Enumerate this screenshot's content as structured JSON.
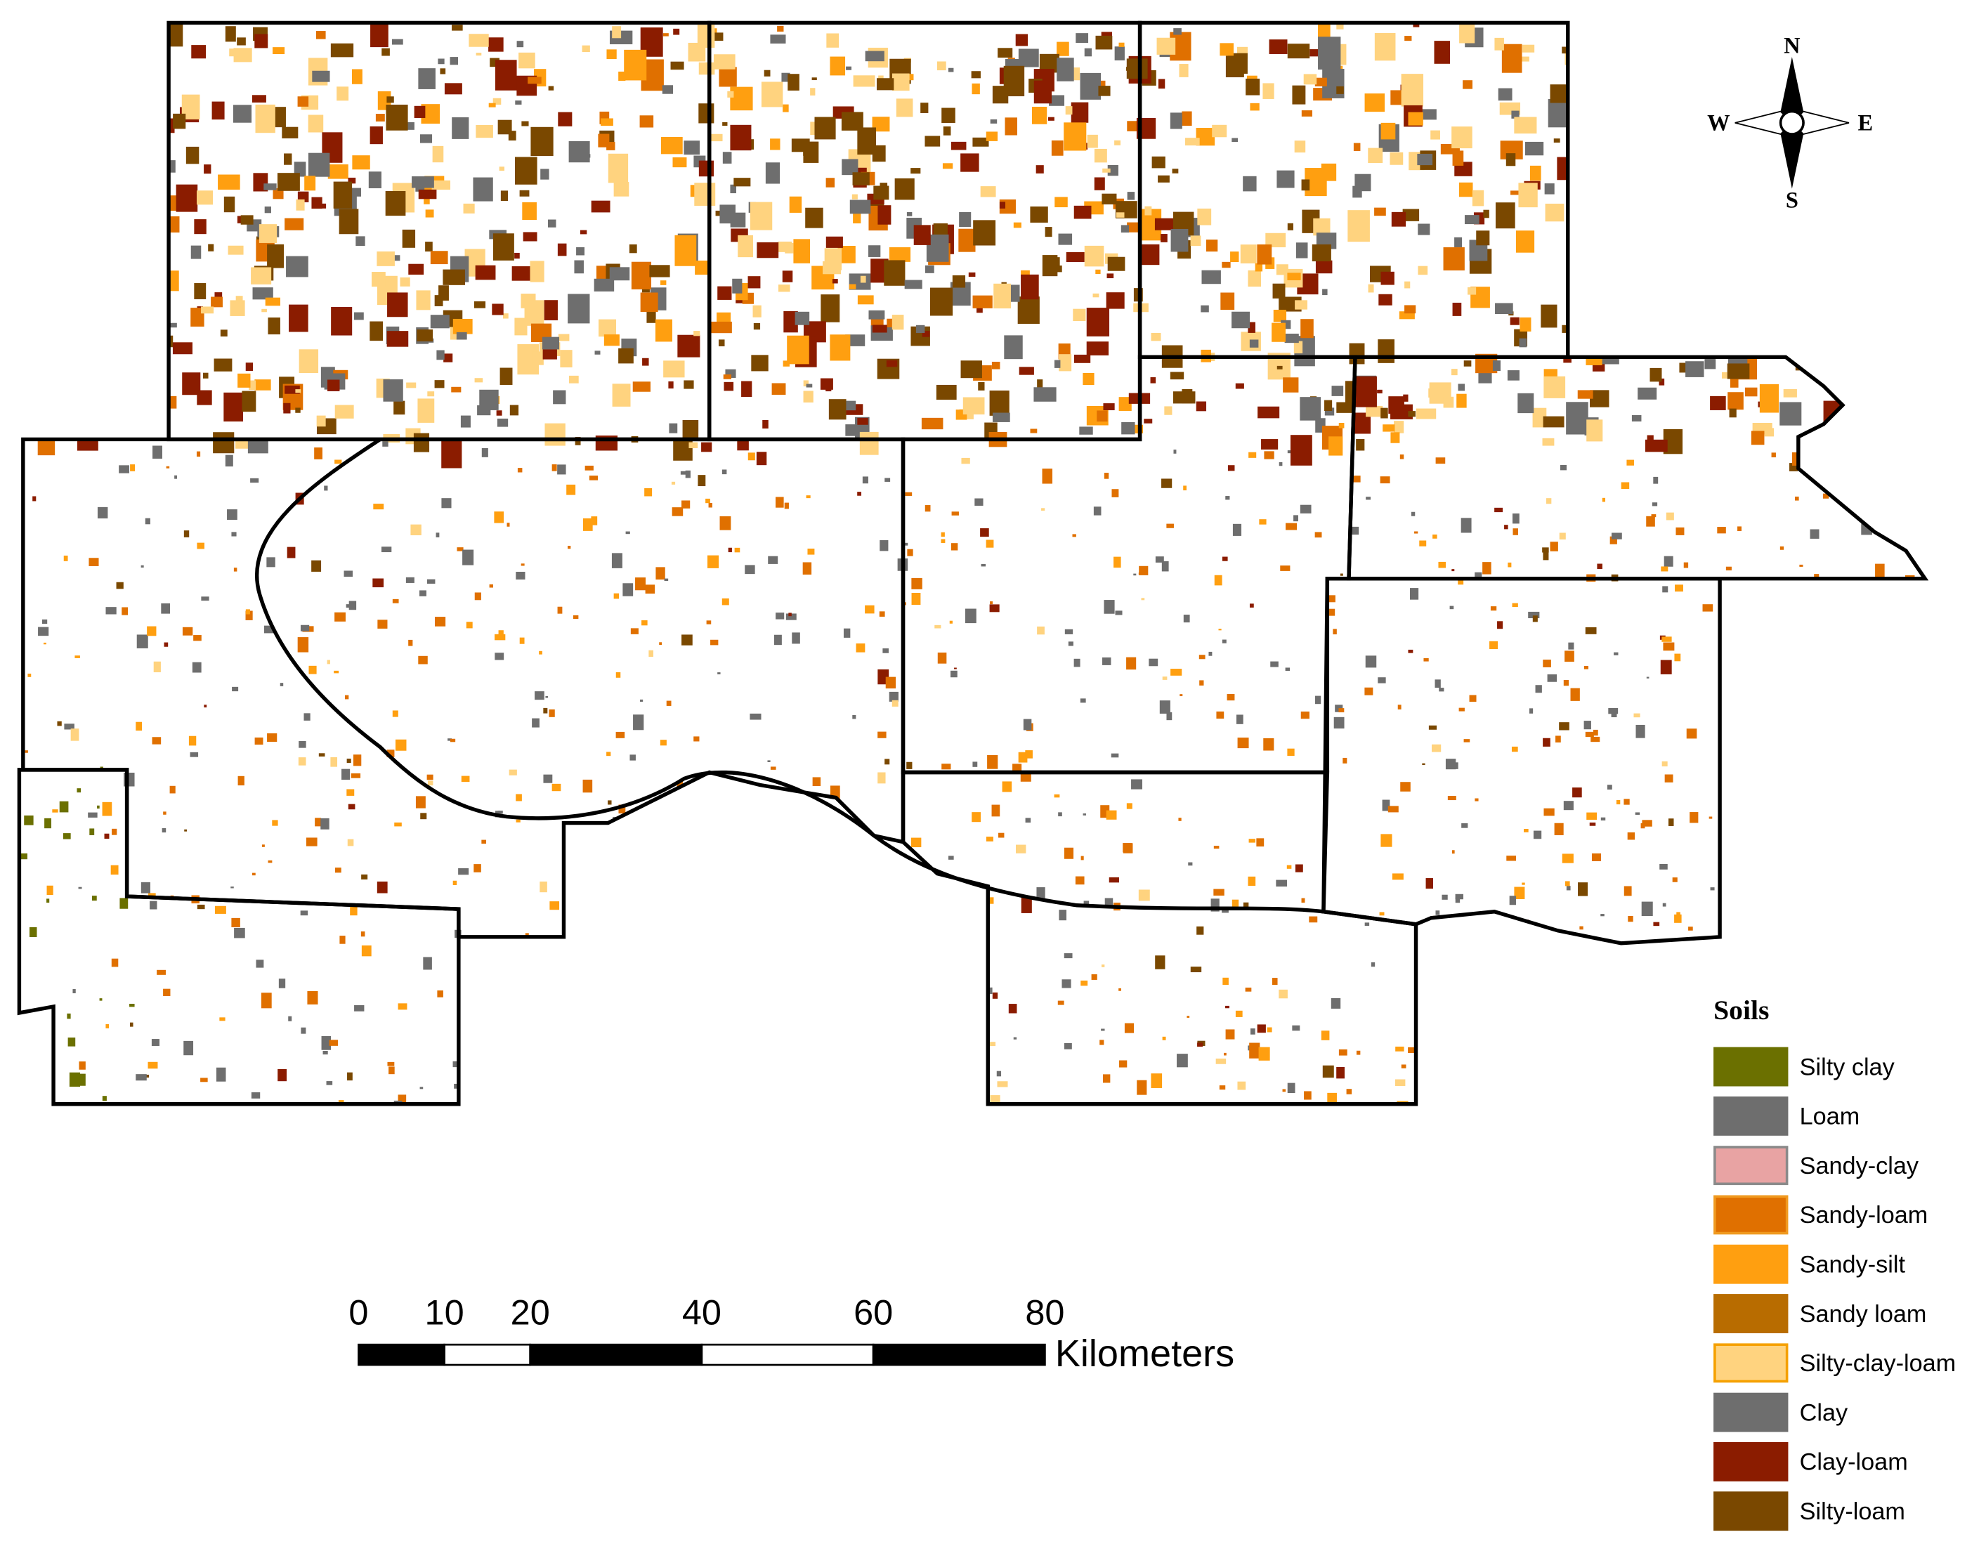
{
  "compass": {
    "north": "N",
    "south": "S",
    "east": "E",
    "west": "W"
  },
  "legend": {
    "title": "Soils",
    "items": [
      {
        "label": "Silty clay",
        "color": "#6b7000",
        "border": "#6b7000"
      },
      {
        "label": "Loam",
        "color": "#6e6e6e",
        "border": "#6e6e6e"
      },
      {
        "label": "Sandy-clay",
        "color": "#e8a3a3",
        "border": "#8a8a8a"
      },
      {
        "label": "Sandy-loam",
        "color": "#e07000",
        "border": "#f09a20"
      },
      {
        "label": "Sandy-silt",
        "color": "#ff9f10",
        "border": "#ff9f10"
      },
      {
        "label": "Sandy loam",
        "color": "#b86c00",
        "border": "#b86c00"
      },
      {
        "label": "Silty-clay-loam",
        "color": "#ffd37f",
        "border": "#f5a000"
      },
      {
        "label": "Clay",
        "color": "#6e6e6e",
        "border": "#6e6e6e"
      },
      {
        "label": "Clay-loam",
        "color": "#8b1c00",
        "border": "#8b1c00"
      },
      {
        "label": "Silty-loam",
        "color": "#7a4800",
        "border": "#7a4800"
      }
    ]
  },
  "scale_bar": {
    "ticks": [
      0,
      10,
      20,
      40,
      60,
      80
    ],
    "unit": "Kilometers"
  }
}
